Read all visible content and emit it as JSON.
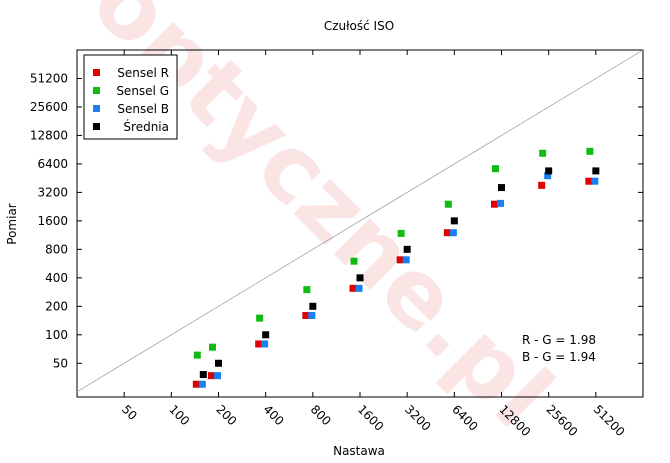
{
  "chart_data": {
    "type": "scatter",
    "title": "Czułość ISO",
    "xlabel": "Nastawa",
    "ylabel": "Pomiar",
    "scale": "log2",
    "xlim": [
      25,
      102400
    ],
    "ylim": [
      22,
      102400
    ],
    "x_ticks": [
      50,
      100,
      200,
      400,
      800,
      1600,
      3200,
      6400,
      12800,
      25600,
      51200
    ],
    "y_ticks": [
      50,
      100,
      200,
      400,
      800,
      1600,
      3200,
      6400,
      12800,
      25600,
      51200
    ],
    "grid": false,
    "legend_position": "top-left",
    "reference_line": "y = x",
    "watermark": "optyczne.pl",
    "annotations": [
      "R - G = 1.98",
      "B - G = 1.94"
    ],
    "series": [
      {
        "name": "Sensel R",
        "color": "#e00000",
        "marker": "square",
        "x": [
          160,
          200,
          400,
          800,
          1600,
          3200,
          6400,
          12800,
          25600,
          51200
        ],
        "y": [
          30,
          37,
          80,
          160,
          310,
          620,
          1200,
          2400,
          3800,
          4200
        ]
      },
      {
        "name": "Sensel G",
        "color": "#11bb11",
        "marker": "square",
        "x": [
          160,
          200,
          400,
          800,
          1600,
          3200,
          6400,
          12800,
          25600,
          51200
        ],
        "y": [
          61,
          74,
          150,
          300,
          600,
          1180,
          2400,
          5700,
          8300,
          8700
        ]
      },
      {
        "name": "Sensel B",
        "color": "#1a7ff0",
        "marker": "square",
        "x": [
          160,
          200,
          400,
          800,
          1600,
          3200,
          6400,
          12800,
          25600,
          51200
        ],
        "y": [
          30,
          37,
          80,
          160,
          310,
          620,
          1200,
          2450,
          4800,
          4200
        ]
      },
      {
        "name": "Średnia",
        "color": "#000000",
        "marker": "square",
        "x": [
          160,
          200,
          400,
          800,
          1600,
          3200,
          6400,
          12800,
          25600,
          51200
        ],
        "y": [
          38,
          50,
          100,
          200,
          400,
          800,
          1600,
          3600,
          5400,
          5400
        ]
      }
    ]
  }
}
